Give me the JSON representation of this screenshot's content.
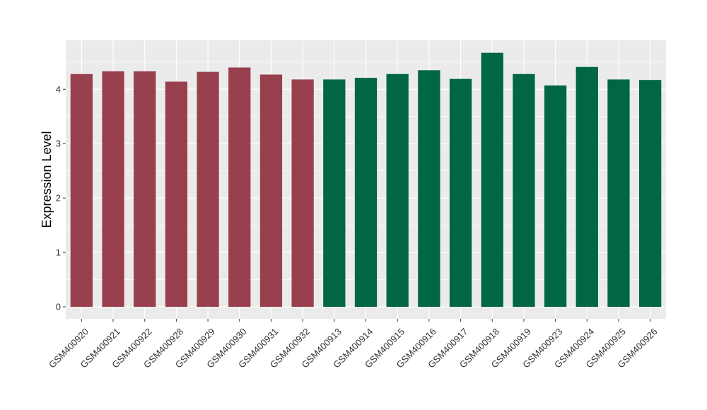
{
  "chart_data": {
    "type": "bar",
    "ylabel": "Expression Level",
    "xlabel": "",
    "ylim": [
      -0.22,
      4.9
    ],
    "yticks": [
      0,
      1,
      2,
      3,
      4
    ],
    "grid": true,
    "colors": {
      "group1": "#99404f",
      "group2": "#006644",
      "panel": "#ebebeb",
      "grid": "#ffffff"
    },
    "categories": [
      "GSM400920",
      "GSM400921",
      "GSM400922",
      "GSM400928",
      "GSM400929",
      "GSM400930",
      "GSM400931",
      "GSM400932",
      "GSM400913",
      "GSM400914",
      "GSM400915",
      "GSM400916",
      "GSM400917",
      "GSM400918",
      "GSM400919",
      "GSM400923",
      "GSM400924",
      "GSM400925",
      "GSM400926"
    ],
    "values": [
      4.28,
      4.33,
      4.33,
      4.14,
      4.32,
      4.4,
      4.27,
      4.18,
      4.18,
      4.21,
      4.28,
      4.35,
      4.19,
      4.67,
      4.28,
      4.07,
      4.41,
      4.18,
      4.17
    ],
    "groups": [
      "group1",
      "group1",
      "group1",
      "group1",
      "group1",
      "group1",
      "group1",
      "group1",
      "group2",
      "group2",
      "group2",
      "group2",
      "group2",
      "group2",
      "group2",
      "group2",
      "group2",
      "group2",
      "group2"
    ]
  }
}
